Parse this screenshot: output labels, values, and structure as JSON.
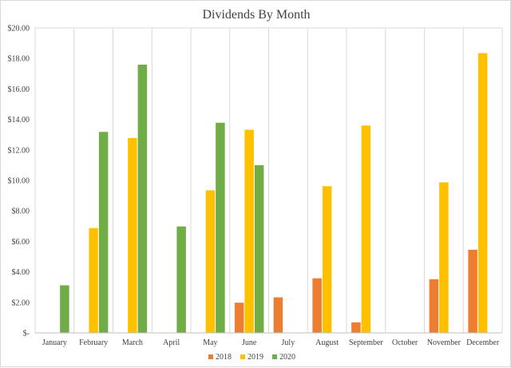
{
  "chart_data": {
    "type": "bar",
    "title": "Dividends By Month",
    "categories": [
      "January",
      "February",
      "March",
      "April",
      "May",
      "June",
      "July",
      "August",
      "September",
      "October",
      "November",
      "December"
    ],
    "series": [
      {
        "name": "2018",
        "color": "#ed7d31",
        "values": [
          0,
          0,
          0,
          0,
          0,
          1.98,
          2.33,
          3.58,
          0.69,
          0,
          3.52,
          5.45
        ]
      },
      {
        "name": "2019",
        "color": "#ffc000",
        "values": [
          0,
          6.87,
          12.78,
          0,
          9.35,
          13.32,
          0,
          9.62,
          13.6,
          0,
          9.87,
          18.35
        ]
      },
      {
        "name": "2020",
        "color": "#70ad47",
        "values": [
          3.12,
          13.18,
          17.59,
          6.98,
          13.78,
          11.0,
          0,
          0,
          0,
          0,
          0,
          0
        ]
      }
    ],
    "ylim": [
      0,
      20
    ],
    "ytick_values": [
      0,
      2,
      4,
      6,
      8,
      10,
      12,
      14,
      16,
      18,
      20
    ],
    "ytick_labels": [
      "$-",
      "$2.00",
      "$4.00",
      "$6.00",
      "$8.00",
      "$10.00",
      "$12.00",
      "$14.00",
      "$16.00",
      "$18.00",
      "$20.00"
    ],
    "grid": {
      "vertical": true,
      "horizontal": false,
      "color": "#d9d9d9"
    },
    "legend_position": "bottom"
  }
}
